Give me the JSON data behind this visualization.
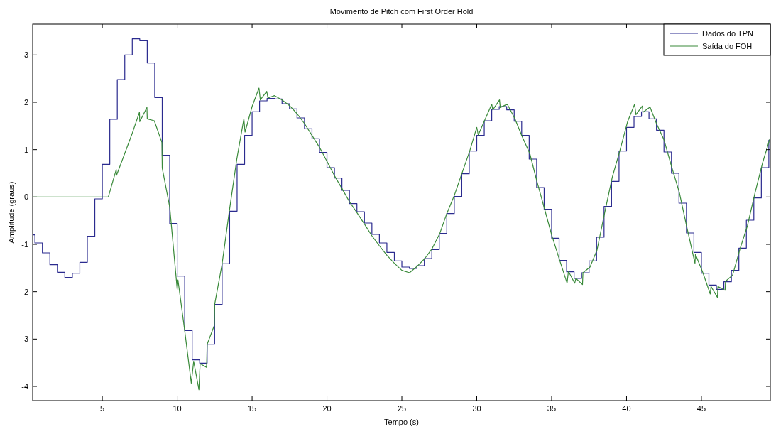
{
  "chart_data": {
    "type": "line",
    "title": "Movimento de Pitch com First Order Hold",
    "xlabel": "Tempo (s)",
    "ylabel": "Amplitude (graus)",
    "xlim": [
      0.35,
      49.6
    ],
    "ylim": [
      -4.3,
      3.65
    ],
    "xticks": [
      5,
      10,
      15,
      20,
      25,
      30,
      35,
      40,
      45
    ],
    "yticks": [
      -4,
      -3,
      -2,
      -1,
      0,
      1,
      2,
      3
    ],
    "grid": false,
    "legend": "top right",
    "line_style": "solid",
    "marker": "none",
    "series": [
      {
        "name": "Dados do TPN",
        "type": "step",
        "color": "#2b2b8f",
        "x": [
          0.35,
          0.5,
          1.0,
          1.5,
          2.0,
          2.5,
          3.0,
          3.5,
          4.0,
          4.5,
          5.0,
          5.5,
          6.0,
          6.5,
          7.0,
          7.5,
          8.0,
          8.5,
          9.0,
          9.5,
          10.0,
          10.5,
          11.0,
          11.5,
          12.0,
          12.5,
          13.0,
          13.5,
          14.0,
          14.5,
          15.0,
          15.5,
          16.0,
          16.5,
          17.0,
          17.5,
          18.0,
          18.5,
          19.0,
          19.5,
          20.0,
          20.5,
          21.0,
          21.5,
          22.0,
          22.5,
          23.0,
          23.5,
          24.0,
          24.5,
          25.0,
          25.5,
          26.0,
          26.5,
          27.0,
          27.5,
          28.0,
          28.5,
          29.0,
          29.5,
          30.0,
          30.5,
          31.0,
          31.5,
          32.0,
          32.5,
          33.0,
          33.5,
          34.0,
          34.5,
          35.0,
          35.5,
          36.0,
          36.5,
          37.0,
          37.5,
          38.0,
          38.5,
          39.0,
          39.5,
          40.0,
          40.5,
          41.0,
          41.5,
          42.0,
          42.5,
          43.0,
          43.5,
          44.0,
          44.5,
          45.0,
          45.5,
          46.0,
          46.5,
          47.0,
          47.5,
          48.0,
          48.5,
          49.0,
          49.5,
          49.6
        ],
        "values": [
          -0.8,
          -0.97,
          -1.18,
          -1.43,
          -1.59,
          -1.7,
          -1.61,
          -1.38,
          -0.83,
          -0.04,
          0.69,
          1.64,
          2.48,
          3.0,
          3.34,
          3.3,
          2.83,
          2.1,
          0.88,
          -0.56,
          -1.67,
          -2.82,
          -3.44,
          -3.51,
          -3.11,
          -2.27,
          -1.41,
          -0.3,
          0.69,
          1.3,
          1.8,
          2.03,
          2.08,
          2.07,
          1.97,
          1.86,
          1.67,
          1.44,
          1.23,
          0.94,
          0.62,
          0.4,
          0.14,
          -0.14,
          -0.31,
          -0.55,
          -0.79,
          -0.97,
          -1.17,
          -1.35,
          -1.48,
          -1.51,
          -1.45,
          -1.3,
          -1.11,
          -0.77,
          -0.35,
          0.01,
          0.49,
          0.97,
          1.3,
          1.61,
          1.85,
          1.91,
          1.84,
          1.6,
          1.3,
          0.8,
          0.2,
          -0.26,
          -0.87,
          -1.34,
          -1.58,
          -1.72,
          -1.6,
          -1.35,
          -0.85,
          -0.2,
          0.33,
          0.97,
          1.47,
          1.7,
          1.8,
          1.65,
          1.41,
          0.95,
          0.5,
          -0.13,
          -0.76,
          -1.17,
          -1.61,
          -1.86,
          -1.95,
          -1.79,
          -1.55,
          -1.08,
          -0.49,
          -0.02,
          0.62,
          1.2,
          1.2
        ]
      },
      {
        "name": "Saída do FOH",
        "type": "line",
        "color": "#3a8a3a",
        "x": [
          0.35,
          5.4,
          5.93,
          5.95,
          6.45,
          6.97,
          7.48,
          7.5,
          7.98,
          8.0,
          8.47,
          8.98,
          9.0,
          9.5,
          10.0,
          10.05,
          10.5,
          10.94,
          11.1,
          11.45,
          11.53,
          11.96,
          12.0,
          12.48,
          12.5,
          12.99,
          13.47,
          13.98,
          14.45,
          14.53,
          15.0,
          15.46,
          15.55,
          15.98,
          16.06,
          16.5,
          17.0,
          17.5,
          18.0,
          18.5,
          19.0,
          19.5,
          20.0,
          20.5,
          21.0,
          21.5,
          22.0,
          22.5,
          23.0,
          23.5,
          24.0,
          24.5,
          25.0,
          25.51,
          26.0,
          26.53,
          27.0,
          27.52,
          28.0,
          28.51,
          29.0,
          29.53,
          30.0,
          30.1,
          30.5,
          31.0,
          31.07,
          31.52,
          31.57,
          32.04,
          32.54,
          33.0,
          33.54,
          34.0,
          34.55,
          35.0,
          35.55,
          36.03,
          36.12,
          36.54,
          36.62,
          37.06,
          37.09,
          37.56,
          38.03,
          38.53,
          39.05,
          39.55,
          40.07,
          40.54,
          40.63,
          41.05,
          41.1,
          41.57,
          42.0,
          42.5,
          43.0,
          43.53,
          44.0,
          44.57,
          44.6,
          45.1,
          45.59,
          45.64,
          46.07,
          46.1,
          46.58,
          46.61,
          47.08,
          47.59,
          48.07,
          48.58,
          49.1,
          49.6
        ],
        "values": [
          0,
          0,
          0.58,
          0.46,
          0.88,
          1.32,
          1.79,
          1.59,
          1.89,
          1.65,
          1.61,
          1.15,
          0.61,
          -0.21,
          -1.95,
          -1.75,
          -2.82,
          -3.93,
          -3.47,
          -4.07,
          -3.52,
          -3.6,
          -3.11,
          -2.71,
          -2.27,
          -1.43,
          -0.32,
          0.8,
          1.65,
          1.37,
          1.91,
          2.3,
          2.05,
          2.23,
          2.09,
          2.14,
          2.05,
          1.93,
          1.76,
          1.55,
          1.3,
          1.05,
          0.75,
          0.45,
          0.18,
          -0.1,
          -0.33,
          -0.57,
          -0.82,
          -1.03,
          -1.23,
          -1.4,
          -1.55,
          -1.6,
          -1.47,
          -1.3,
          -1.1,
          -0.78,
          -0.35,
          0.04,
          0.49,
          0.97,
          1.47,
          1.31,
          1.6,
          1.96,
          1.84,
          2.05,
          1.89,
          1.96,
          1.66,
          1.3,
          0.92,
          0.35,
          -0.28,
          -0.8,
          -1.35,
          -1.82,
          -1.57,
          -1.82,
          -1.72,
          -1.85,
          -1.6,
          -1.48,
          -1.12,
          -0.35,
          0.42,
          0.97,
          1.59,
          1.96,
          1.74,
          1.92,
          1.79,
          1.9,
          1.55,
          1.21,
          0.65,
          0.09,
          -0.6,
          -1.4,
          -1.21,
          -1.6,
          -2.05,
          -1.89,
          -2.12,
          -1.89,
          -1.97,
          -1.78,
          -1.65,
          -1.08,
          -0.61,
          0.09,
          0.74,
          1.26
        ]
      }
    ]
  }
}
